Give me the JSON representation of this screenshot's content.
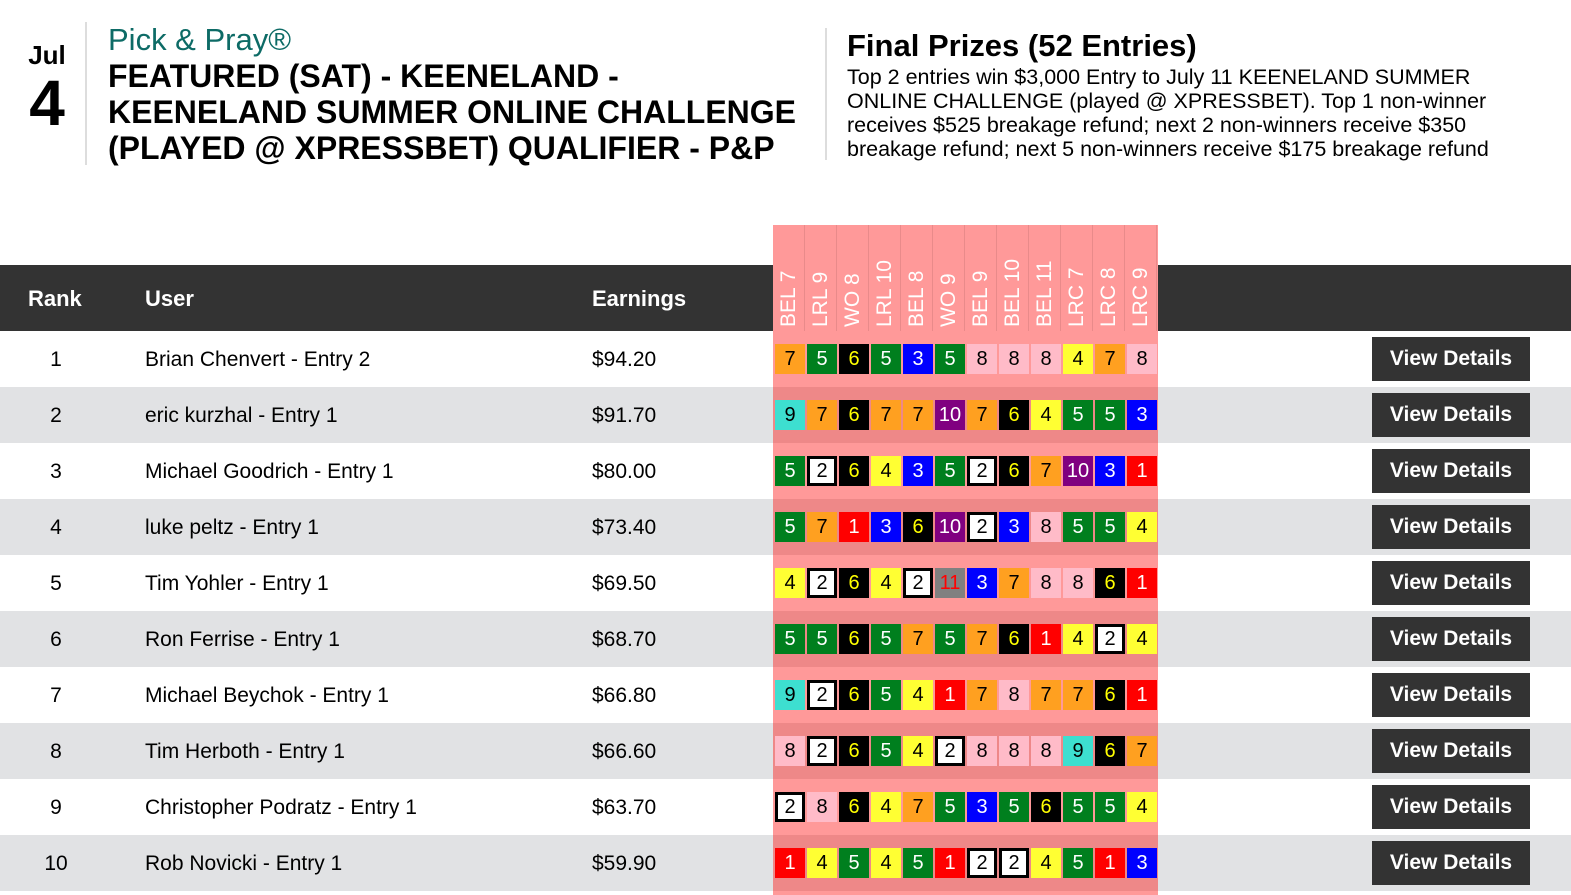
{
  "header": {
    "month": "Jul",
    "day": "4",
    "brand": "Pick & Pray®",
    "title": "FEATURED (SAT) - KEENELAND - KEENELAND SUMMER ONLINE CHALLENGE (PLAYED @ XPRESSBET) QUALIFIER - P&P"
  },
  "prizes": {
    "title": "Final Prizes (52 Entries)",
    "description": "Top 2 entries win $3,000 Entry to July 11 KEENELAND SUMMER ONLINE CHALLENGE (played @ XPRESSBET). Top 1 non-winner receives $525 breakage refund; next 2 non-winners receive $350 breakage refund; next 5 non-winners receive $175 breakage refund"
  },
  "table": {
    "columns": {
      "rank": "Rank",
      "user": "User",
      "earnings": "Earnings"
    },
    "races": [
      "BEL 7",
      "LRL 9",
      "WO 8",
      "LRL 10",
      "BEL 8",
      "WO 9",
      "BEL 9",
      "BEL 10",
      "BEL 11",
      "LRC 7",
      "LRC 8",
      "LRC 9"
    ],
    "button_label": "View Details",
    "rows": [
      {
        "rank": "1",
        "user": "Brian Chenvert - Entry 2",
        "earnings": "$94.20",
        "picks": [
          7,
          5,
          6,
          5,
          3,
          5,
          8,
          8,
          8,
          4,
          7,
          8
        ]
      },
      {
        "rank": "2",
        "user": "eric kurzhal - Entry 1",
        "earnings": "$91.70",
        "picks": [
          9,
          7,
          6,
          7,
          7,
          10,
          7,
          6,
          4,
          5,
          5,
          3
        ]
      },
      {
        "rank": "3",
        "user": "Michael Goodrich - Entry 1",
        "earnings": "$80.00",
        "picks": [
          5,
          2,
          6,
          4,
          3,
          5,
          2,
          6,
          7,
          10,
          3,
          1
        ]
      },
      {
        "rank": "4",
        "user": "luke peltz - Entry 1",
        "earnings": "$73.40",
        "picks": [
          5,
          7,
          1,
          3,
          6,
          10,
          2,
          3,
          8,
          5,
          5,
          4
        ]
      },
      {
        "rank": "5",
        "user": "Tim Yohler - Entry 1",
        "earnings": "$69.50",
        "picks": [
          4,
          2,
          6,
          4,
          2,
          11,
          3,
          7,
          8,
          8,
          6,
          1
        ]
      },
      {
        "rank": "6",
        "user": "Ron Ferrise - Entry 1",
        "earnings": "$68.70",
        "picks": [
          5,
          5,
          6,
          5,
          7,
          5,
          7,
          6,
          1,
          4,
          2,
          4
        ]
      },
      {
        "rank": "7",
        "user": "Michael Beychok - Entry 1",
        "earnings": "$66.80",
        "picks": [
          9,
          2,
          6,
          5,
          4,
          1,
          7,
          8,
          7,
          7,
          6,
          1
        ]
      },
      {
        "rank": "8",
        "user": "Tim Herboth - Entry 1",
        "earnings": "$66.60",
        "picks": [
          8,
          2,
          6,
          5,
          4,
          2,
          8,
          8,
          8,
          9,
          6,
          7
        ]
      },
      {
        "rank": "9",
        "user": "Christopher Podratz - Entry 1",
        "earnings": "$63.70",
        "picks": [
          2,
          8,
          6,
          4,
          7,
          5,
          3,
          5,
          6,
          5,
          5,
          4
        ]
      },
      {
        "rank": "10",
        "user": "Rob Novicki - Entry 1",
        "earnings": "$59.90",
        "picks": [
          1,
          4,
          5,
          4,
          5,
          1,
          2,
          2,
          4,
          5,
          1,
          3
        ]
      }
    ]
  },
  "saddle_colors": {
    "1": {
      "bg": "#ff0000",
      "fg": "#ffffff"
    },
    "2": {
      "bg": "#ffffff",
      "fg": "#000000"
    },
    "3": {
      "bg": "#0000ff",
      "fg": "#ffffff"
    },
    "4": {
      "bg": "#ffff33",
      "fg": "#000000"
    },
    "5": {
      "bg": "#007f1e",
      "fg": "#ffffff"
    },
    "6": {
      "bg": "#000000",
      "fg": "#ffff00"
    },
    "7": {
      "bg": "#ffa020",
      "fg": "#000000"
    },
    "8": {
      "bg": "#ffbbc8",
      "fg": "#000000"
    },
    "9": {
      "bg": "#3ddfd0",
      "fg": "#000000"
    },
    "10": {
      "bg": "#800080",
      "fg": "#ffffff"
    },
    "11": {
      "bg": "#808080",
      "fg": "#ff0000"
    }
  }
}
